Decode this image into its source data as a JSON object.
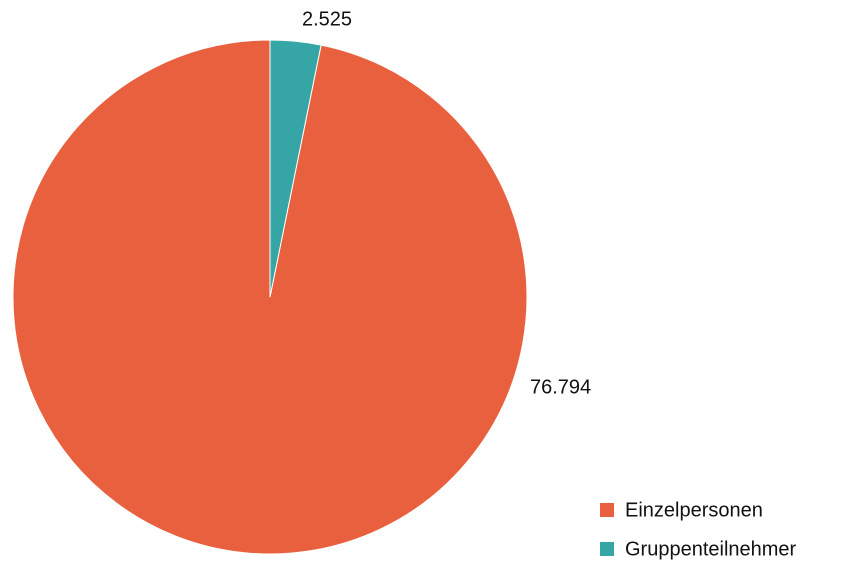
{
  "chart_data": {
    "type": "pie",
    "categories": [
      "Einzelpersonen",
      "Gruppenteilnehmer"
    ],
    "values": [
      76794,
      2525
    ],
    "value_labels": [
      "76.794",
      "2.525"
    ],
    "colors": [
      "#e8603e",
      "#35a5a5"
    ],
    "legend": "bottom-right"
  }
}
